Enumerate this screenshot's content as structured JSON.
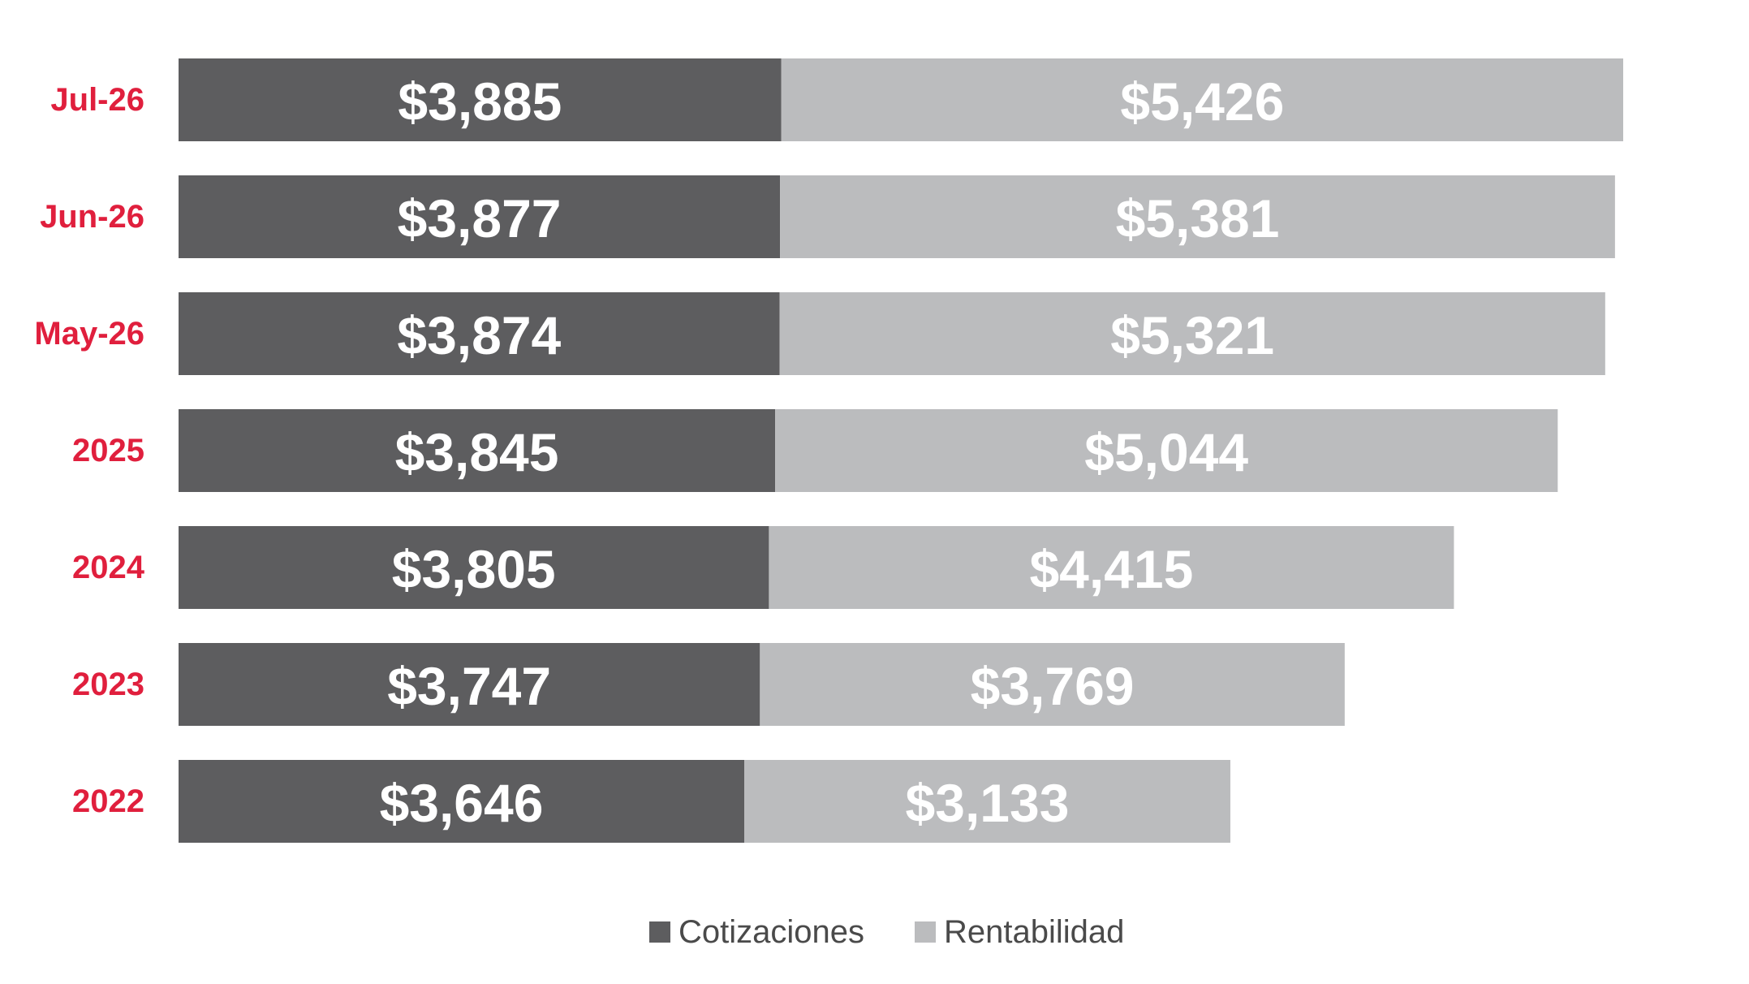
{
  "chart_data": {
    "type": "bar",
    "orientation": "horizontal",
    "stacked": true,
    "categories": [
      "Jul-26",
      "Jun-26",
      "May-26",
      "2025",
      "2024",
      "2023",
      "2022"
    ],
    "series": [
      {
        "name": "Cotizaciones",
        "values": [
          3885,
          3877,
          3874,
          3845,
          3805,
          3747,
          3646
        ],
        "labels": [
          "$3,885",
          "$3,877",
          "$3,874",
          "$3,845",
          "$3,805",
          "$3,747",
          "$3,646"
        ],
        "color": "#5d5d5f"
      },
      {
        "name": "Rentabilidad",
        "values": [
          5426,
          5381,
          5321,
          5044,
          4415,
          3769,
          3133
        ],
        "labels": [
          "$5,426",
          "$5,381",
          "$5,321",
          "$5,044",
          "$4,415",
          "$3,769",
          "$3,133"
        ],
        "color": "#bbbcbe"
      }
    ],
    "xlim": [
      0,
      9311
    ],
    "grid": false,
    "legend": {
      "position": "bottom-center"
    },
    "category_label_color": "#e01f3d"
  }
}
